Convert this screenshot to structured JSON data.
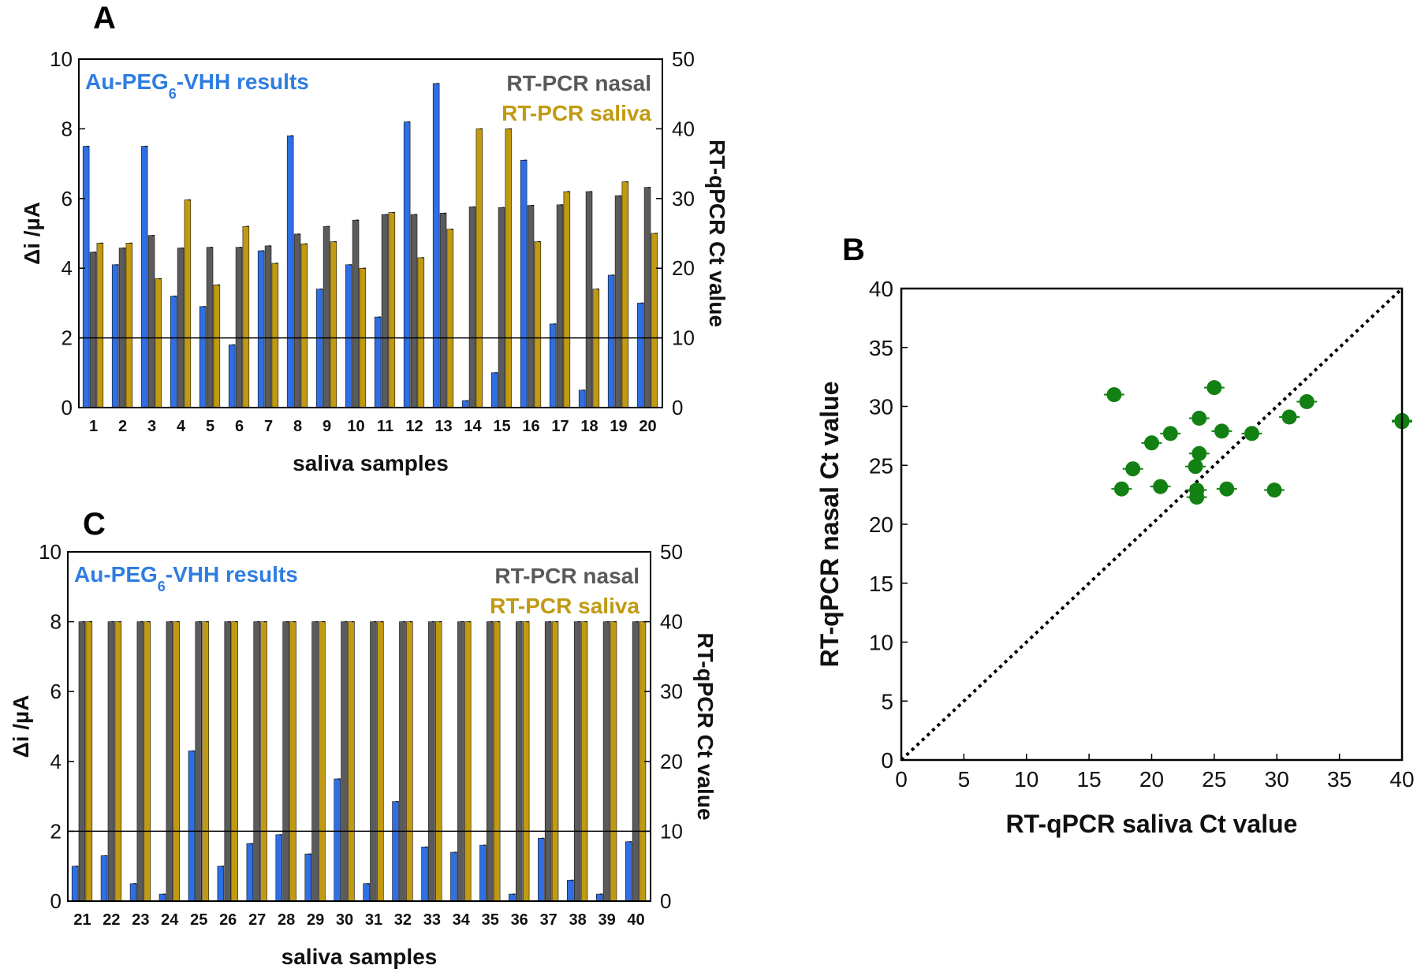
{
  "figure": {
    "panel_a_letter": "A",
    "panel_b_letter": "B",
    "panel_c_letter": "C"
  },
  "colors": {
    "au": "#2f6fe4",
    "nasal": "#5b5b5b",
    "saliva": "#c19a12",
    "au_text": "#2f7de0",
    "nasal_text": "#595959",
    "saliva_text": "#c19a12",
    "scatter": "#138013"
  },
  "chart_data": [
    {
      "id": "A",
      "type": "bar",
      "title": "",
      "xlabel": "saliva samples",
      "ylabel": "Δi /µA",
      "y2label": "RT-qPCR Ct value",
      "ylim": [
        0,
        10
      ],
      "y2lim": [
        0,
        50
      ],
      "yticks": [
        "0",
        "2",
        "4",
        "6",
        "8",
        "10"
      ],
      "y2ticks": [
        "0",
        "10",
        "20",
        "30",
        "40",
        "50"
      ],
      "threshold_value": 2,
      "legend": {
        "au_main": "Au-PEG",
        "au_sub": "6",
        "au_rest": "-VHH results",
        "nasal_main": "RT-PCR",
        "nasal_rest": " nasal",
        "saliva_main": "RT-PCR",
        "saliva_rest": " saliva"
      },
      "categories": [
        "1",
        "2",
        "3",
        "4",
        "5",
        "6",
        "7",
        "8",
        "9",
        "10",
        "11",
        "12",
        "13",
        "14",
        "15",
        "16",
        "17",
        "18",
        "19",
        "20"
      ],
      "series": [
        {
          "name": "Au-PEG6-VHH results",
          "axis": "left",
          "values": [
            7.5,
            4.1,
            7.5,
            3.2,
            2.9,
            1.8,
            4.5,
            7.8,
            3.4,
            4.1,
            2.6,
            8.2,
            9.3,
            0.2,
            1.0,
            7.1,
            2.4,
            0.5,
            3.8,
            3.0
          ]
        },
        {
          "name": "RT-PCR nasal",
          "axis": "right",
          "values": [
            22.3,
            22.9,
            24.7,
            22.9,
            23.0,
            23.0,
            23.2,
            24.9,
            26.0,
            26.9,
            27.7,
            27.7,
            27.9,
            28.8,
            28.7,
            29.0,
            29.1,
            31.0,
            30.4,
            31.6
          ]
        },
        {
          "name": "RT-PCR saliva",
          "axis": "right",
          "values": [
            23.6,
            23.6,
            18.5,
            29.8,
            17.6,
            26.0,
            20.7,
            23.5,
            23.8,
            20.0,
            28.0,
            21.5,
            25.6,
            40.0,
            40.0,
            23.8,
            31.0,
            17.0,
            32.4,
            25.0
          ]
        }
      ]
    },
    {
      "id": "B",
      "type": "scatter",
      "title": "",
      "xlabel": "RT-qPCR saliva Ct value",
      "ylabel": "RT-qPCR nasal Ct value",
      "xlim": [
        0,
        40
      ],
      "ylim": [
        0,
        40
      ],
      "xticks": [
        "0",
        "5",
        "10",
        "15",
        "20",
        "25",
        "30",
        "35",
        "40"
      ],
      "yticks": [
        "0",
        "5",
        "10",
        "15",
        "20",
        "25",
        "30",
        "35",
        "40"
      ],
      "identity_line": true,
      "points": [
        {
          "x": 17.0,
          "y": 31.0
        },
        {
          "x": 17.6,
          "y": 23.0
        },
        {
          "x": 18.5,
          "y": 24.7
        },
        {
          "x": 20.0,
          "y": 26.9
        },
        {
          "x": 20.7,
          "y": 23.2
        },
        {
          "x": 21.5,
          "y": 27.7
        },
        {
          "x": 23.5,
          "y": 24.9
        },
        {
          "x": 23.6,
          "y": 22.3
        },
        {
          "x": 23.6,
          "y": 22.9
        },
        {
          "x": 23.8,
          "y": 26.0
        },
        {
          "x": 23.8,
          "y": 29.0
        },
        {
          "x": 25.0,
          "y": 31.6
        },
        {
          "x": 25.6,
          "y": 27.9
        },
        {
          "x": 26.0,
          "y": 23.0
        },
        {
          "x": 28.0,
          "y": 27.7
        },
        {
          "x": 29.8,
          "y": 22.9
        },
        {
          "x": 31.0,
          "y": 29.1
        },
        {
          "x": 32.4,
          "y": 30.4
        },
        {
          "x": 40.0,
          "y": 28.7
        },
        {
          "x": 40.0,
          "y": 28.8
        }
      ]
    },
    {
      "id": "C",
      "type": "bar",
      "title": "",
      "xlabel": "saliva samples",
      "ylabel": "Δi /µA",
      "y2label": "RT-qPCR Ct value",
      "ylim": [
        0,
        10
      ],
      "y2lim": [
        0,
        50
      ],
      "yticks": [
        "0",
        "2",
        "4",
        "6",
        "8",
        "10"
      ],
      "y2ticks": [
        "0",
        "10",
        "20",
        "30",
        "40",
        "50"
      ],
      "threshold_value": 2,
      "legend": {
        "au_main": "Au-PEG",
        "au_sub": "6",
        "au_rest": "-VHH results",
        "nasal_main": "RT-PCR",
        "nasal_rest": " nasal",
        "saliva_main": "RT-PCR",
        "saliva_rest": " saliva"
      },
      "categories": [
        "21",
        "22",
        "23",
        "24",
        "25",
        "26",
        "27",
        "28",
        "29",
        "30",
        "31",
        "32",
        "33",
        "34",
        "35",
        "36",
        "37",
        "38",
        "39",
        "40"
      ],
      "series": [
        {
          "name": "Au-PEG6-VHH results",
          "axis": "left",
          "values": [
            1.0,
            1.3,
            0.5,
            0.2,
            4.3,
            1.0,
            1.65,
            1.9,
            1.35,
            3.5,
            0.5,
            2.85,
            1.55,
            1.4,
            1.6,
            0.2,
            1.8,
            0.6,
            0.2,
            1.7
          ]
        },
        {
          "name": "RT-PCR nasal",
          "axis": "right",
          "values": [
            40,
            40,
            40,
            40,
            40,
            40,
            40,
            40,
            40,
            40,
            40,
            40,
            40,
            40,
            40,
            40,
            40,
            40,
            40,
            40
          ]
        },
        {
          "name": "RT-PCR saliva",
          "axis": "right",
          "values": [
            40,
            40,
            40,
            40,
            40,
            40,
            40,
            40,
            40,
            40,
            40,
            40,
            40,
            40,
            40,
            40,
            40,
            40,
            40,
            40
          ]
        }
      ]
    }
  ]
}
